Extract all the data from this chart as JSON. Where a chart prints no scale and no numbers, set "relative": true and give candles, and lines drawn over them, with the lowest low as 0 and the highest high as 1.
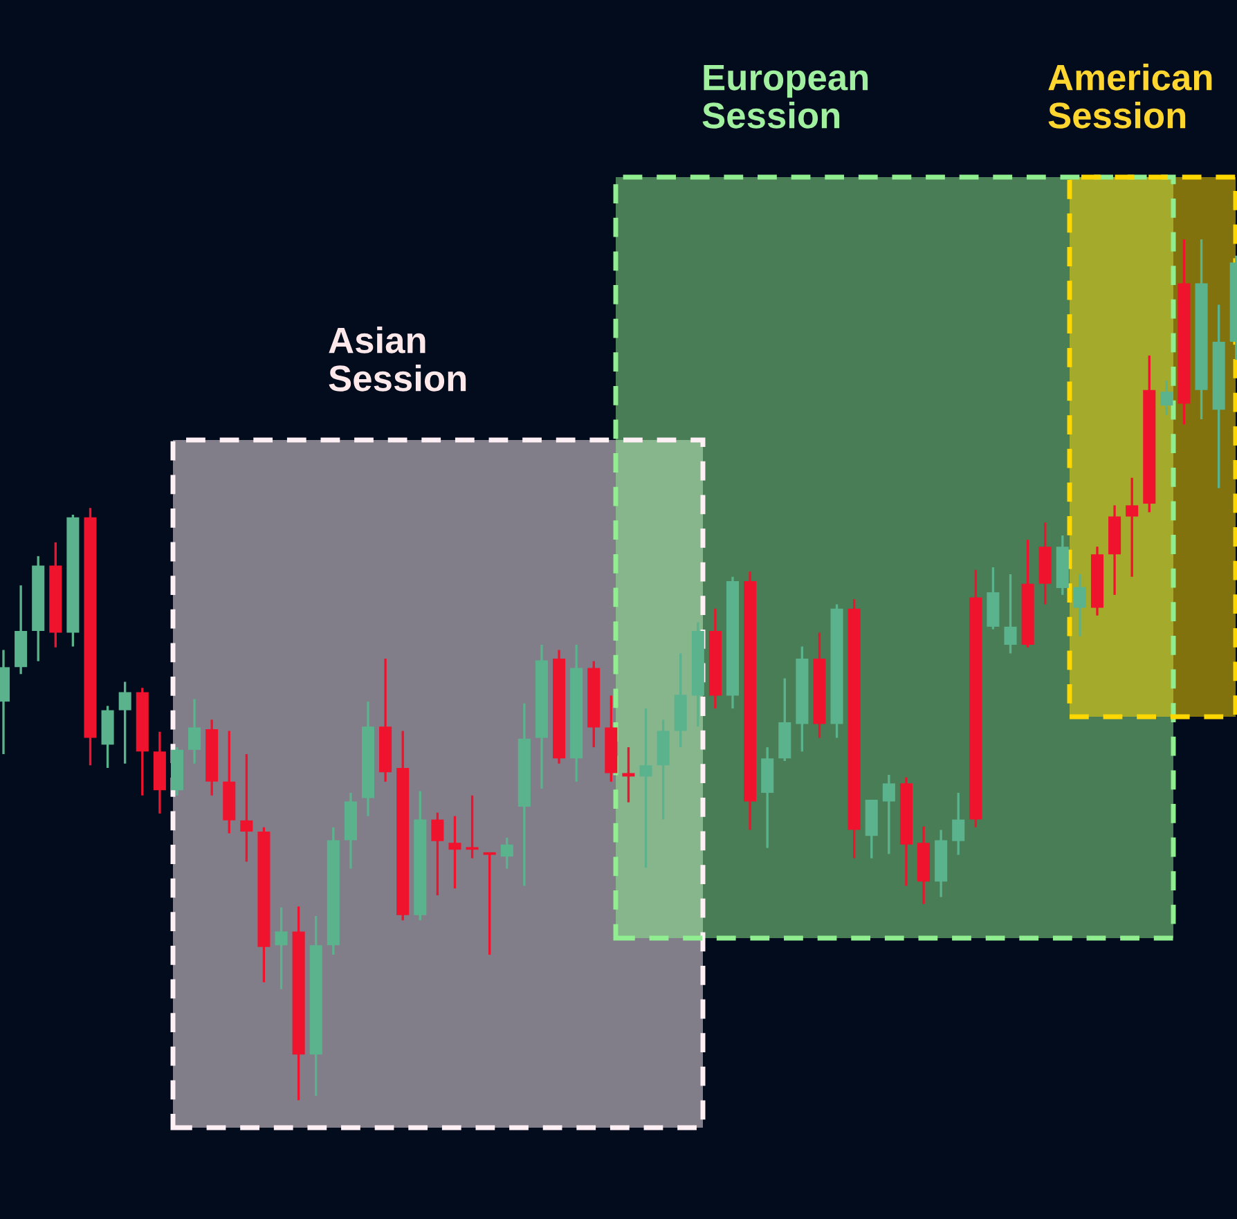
{
  "chart_data": {
    "type": "candlestick",
    "relative": true,
    "categories": [
      null,
      null,
      null,
      null,
      null,
      null,
      null,
      null,
      null,
      null,
      null,
      null,
      null,
      null,
      null,
      null,
      null,
      null,
      null,
      null,
      null,
      null,
      null,
      null,
      null,
      null,
      null,
      null,
      null,
      null,
      null,
      null,
      null,
      null,
      null,
      null,
      null,
      null,
      null,
      null,
      null,
      null,
      null,
      null,
      null,
      null,
      null,
      null,
      null,
      null,
      null,
      null,
      null,
      null,
      null,
      null,
      null,
      null,
      null,
      null,
      null,
      null,
      null,
      null,
      null,
      null,
      null,
      null,
      null,
      null,
      null,
      null
    ],
    "ohlc": [
      [
        0.463,
        0.523,
        0.402,
        0.503
      ],
      [
        0.503,
        0.598,
        0.495,
        0.545
      ],
      [
        0.545,
        0.632,
        0.51,
        0.621
      ],
      [
        0.621,
        0.648,
        0.526,
        0.543
      ],
      [
        0.543,
        0.68,
        0.527,
        0.677
      ],
      [
        0.677,
        0.688,
        0.389,
        0.421
      ],
      [
        0.413,
        0.458,
        0.386,
        0.453
      ],
      [
        0.453,
        0.486,
        0.391,
        0.474
      ],
      [
        0.474,
        0.479,
        0.354,
        0.405
      ],
      [
        0.405,
        0.428,
        0.333,
        0.36
      ],
      [
        0.36,
        0.41,
        0.354,
        0.407
      ],
      [
        0.407,
        0.466,
        0.391,
        0.433
      ],
      [
        0.431,
        0.442,
        0.354,
        0.37
      ],
      [
        0.37,
        0.429,
        0.31,
        0.325
      ],
      [
        0.325,
        0.402,
        0.277,
        0.312
      ],
      [
        0.312,
        0.317,
        0.137,
        0.178
      ],
      [
        0.18,
        0.224,
        0.129,
        0.196
      ],
      [
        0.196,
        0.225,
        0.0,
        0.053
      ],
      [
        0.053,
        0.214,
        0.005,
        0.18
      ],
      [
        0.18,
        0.317,
        0.169,
        0.302
      ],
      [
        0.302,
        0.357,
        0.269,
        0.347
      ],
      [
        0.351,
        0.463,
        0.33,
        0.434
      ],
      [
        0.434,
        0.513,
        0.37,
        0.381
      ],
      [
        0.386,
        0.429,
        0.209,
        0.215
      ],
      [
        0.215,
        0.359,
        0.209,
        0.326
      ],
      [
        0.326,
        0.334,
        0.238,
        0.301
      ],
      [
        0.299,
        0.33,
        0.246,
        0.291
      ],
      [
        0.293,
        0.354,
        0.281,
        0.291
      ],
      [
        0.286,
        0.288,
        0.169,
        0.285
      ],
      [
        0.283,
        0.305,
        0.269,
        0.297
      ],
      [
        0.341,
        0.461,
        0.249,
        0.42
      ],
      [
        0.421,
        0.529,
        0.362,
        0.511
      ],
      [
        0.513,
        0.523,
        0.391,
        0.397
      ],
      [
        0.397,
        0.529,
        0.37,
        0.502
      ],
      [
        0.502,
        0.51,
        0.41,
        0.433
      ],
      [
        0.433,
        0.47,
        0.37,
        0.38
      ],
      [
        0.38,
        0.41,
        0.346,
        0.376
      ],
      [
        0.376,
        0.455,
        0.27,
        0.389
      ],
      [
        0.389,
        0.442,
        0.326,
        0.429
      ],
      [
        0.429,
        0.519,
        0.41,
        0.471
      ],
      [
        0.47,
        0.555,
        0.434,
        0.545
      ],
      [
        0.545,
        0.571,
        0.455,
        0.47
      ],
      [
        0.47,
        0.608,
        0.455,
        0.603
      ],
      [
        0.603,
        0.614,
        0.314,
        0.347
      ],
      [
        0.357,
        0.41,
        0.293,
        0.397
      ],
      [
        0.397,
        0.49,
        0.394,
        0.439
      ],
      [
        0.437,
        0.527,
        0.405,
        0.513
      ],
      [
        0.513,
        0.543,
        0.421,
        0.437
      ],
      [
        0.437,
        0.576,
        0.421,
        0.571
      ],
      [
        0.571,
        0.582,
        0.281,
        0.314
      ],
      [
        0.307,
        0.349,
        0.281,
        0.349
      ],
      [
        0.347,
        0.378,
        0.286,
        0.368
      ],
      [
        0.368,
        0.375,
        0.249,
        0.297
      ],
      [
        0.299,
        0.318,
        0.228,
        0.254
      ],
      [
        0.254,
        0.314,
        0.236,
        0.302
      ],
      [
        0.301,
        0.357,
        0.285,
        0.326
      ],
      [
        0.584,
        0.616,
        0.317,
        0.326
      ],
      [
        0.55,
        0.619,
        0.547,
        0.59
      ],
      [
        0.529,
        0.611,
        0.519,
        0.55
      ],
      [
        0.6,
        0.651,
        0.526,
        0.529
      ],
      [
        0.643,
        0.671,
        0.576,
        0.6
      ],
      [
        0.595,
        0.656,
        0.587,
        0.643
      ],
      [
        0.572,
        0.611,
        0.539,
        0.596
      ],
      [
        0.634,
        0.643,
        0.563,
        0.572
      ],
      [
        0.678,
        0.691,
        0.587,
        0.634
      ],
      [
        0.691,
        0.723,
        0.608,
        0.678
      ],
      [
        0.825,
        0.865,
        0.683,
        0.693
      ],
      [
        0.807,
        0.836,
        0.796,
        0.823
      ],
      [
        0.949,
        1.0,
        0.785,
        0.809
      ],
      [
        0.825,
        1.0,
        0.791,
        0.949
      ],
      [
        0.802,
        0.924,
        0.711,
        0.881
      ],
      [
        0.881,
        0.981,
        0.86,
        0.973
      ]
    ],
    "annotations": [
      "Asian\nSession",
      "European\nSession",
      "American\nSession"
    ]
  }
}
